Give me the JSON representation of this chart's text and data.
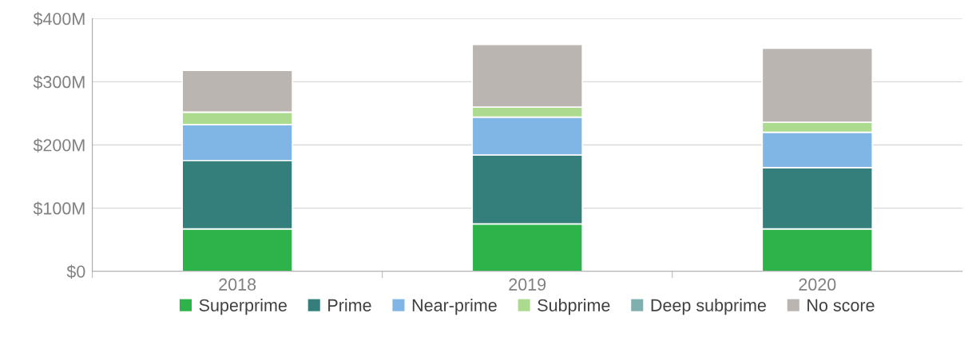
{
  "chart_data": {
    "type": "bar",
    "stacked": true,
    "categories": [
      "2018",
      "2019",
      "2020"
    ],
    "series": [
      {
        "name": "Superprime",
        "color": "#2db34a",
        "values": [
          67,
          75,
          67
        ]
      },
      {
        "name": "Prime",
        "color": "#347f7b",
        "values": [
          108,
          109,
          97
        ]
      },
      {
        "name": "Near-prime",
        "color": "#80b6e5",
        "values": [
          57,
          60,
          56
        ]
      },
      {
        "name": "Subprime",
        "color": "#acdb8f",
        "values": [
          20,
          16,
          16
        ]
      },
      {
        "name": "Deep subprime",
        "color": "#7fb0ad",
        "values": [
          null,
          null,
          null
        ]
      },
      {
        "name": "No score",
        "color": "#bab5b1",
        "values": [
          66,
          99,
          117
        ]
      }
    ],
    "ylim": [
      0,
      400
    ],
    "yticks": [
      {
        "value": 0,
        "label": "$0"
      },
      {
        "value": 100,
        "label": "$100M"
      },
      {
        "value": 200,
        "label": "$200M"
      },
      {
        "value": 300,
        "label": "$300M"
      },
      {
        "value": 400,
        "label": "$400M"
      }
    ],
    "grid": "y",
    "legend": "bottom"
  }
}
